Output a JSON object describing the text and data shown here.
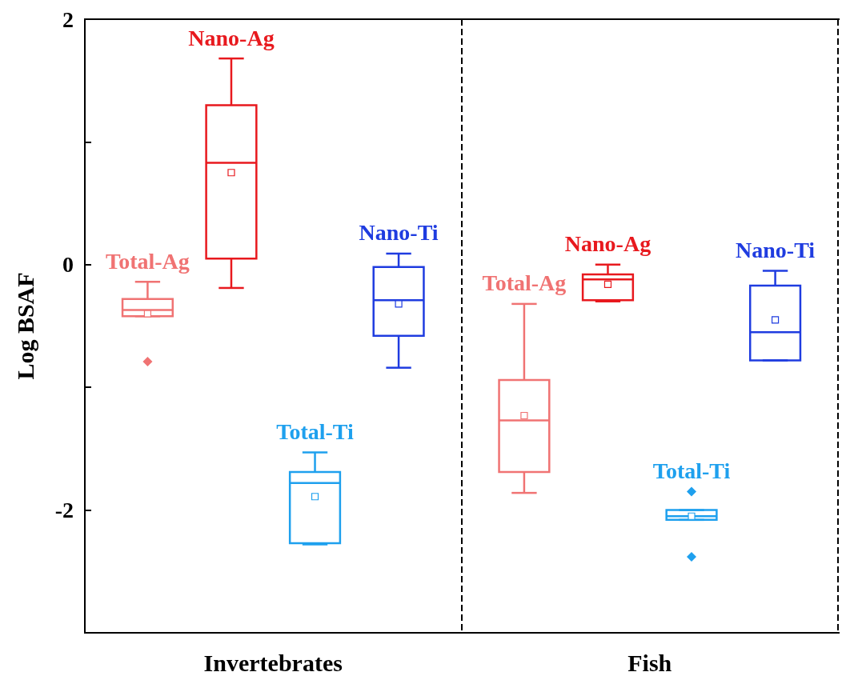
{
  "chart_data": {
    "type": "box",
    "ylabel": "Log BSAF",
    "categories": [
      "Invertebrates",
      "Fish"
    ],
    "ylim": [
      -3,
      2
    ],
    "yticks": [
      {
        "value": -3,
        "label": null
      },
      -2,
      {
        "value": -1,
        "label": null
      },
      0,
      {
        "value": 1,
        "label": null
      },
      2
    ],
    "grid": "x",
    "legend": false,
    "series": [
      {
        "name": "Total-Ag",
        "color": "#f07373",
        "boxes": [
          {
            "low": -0.42,
            "q1": -0.42,
            "median": -0.37,
            "q3": -0.28,
            "high": -0.14,
            "mean": -0.4,
            "outliers": [
              -0.79
            ]
          },
          {
            "low": -1.86,
            "q1": -1.69,
            "median": -1.27,
            "q3": -0.94,
            "high": -0.32,
            "mean": -1.23
          }
        ]
      },
      {
        "name": "Nano-Ag",
        "color": "#e8191e",
        "boxes": [
          {
            "low": -0.19,
            "q1": 0.05,
            "median": 0.83,
            "q3": 1.3,
            "high": 1.68,
            "mean": 0.75
          },
          {
            "low": -0.3,
            "q1": -0.29,
            "median": -0.12,
            "q3": -0.08,
            "high": 0.0,
            "mean": -0.16
          }
        ]
      },
      {
        "name": "Total-Ti",
        "color": "#1ea0ee",
        "boxes": [
          {
            "low": -2.28,
            "q1": -2.27,
            "median": -1.78,
            "q3": -1.69,
            "high": -1.53,
            "mean": -1.89
          },
          {
            "low": -2.08,
            "q1": -2.08,
            "median": -2.05,
            "q3": -2.0,
            "high": -2.0,
            "mean": -2.05,
            "outliers": [
              -1.85,
              -2.38
            ]
          }
        ]
      },
      {
        "name": "Nano-Ti",
        "color": "#1f3ce0",
        "boxes": [
          {
            "low": -0.84,
            "q1": -0.58,
            "median": -0.29,
            "q3": -0.02,
            "high": 0.09,
            "mean": -0.32
          },
          {
            "low": -0.78,
            "q1": -0.78,
            "median": -0.55,
            "q3": -0.17,
            "high": -0.05,
            "mean": -0.45
          }
        ]
      }
    ]
  }
}
